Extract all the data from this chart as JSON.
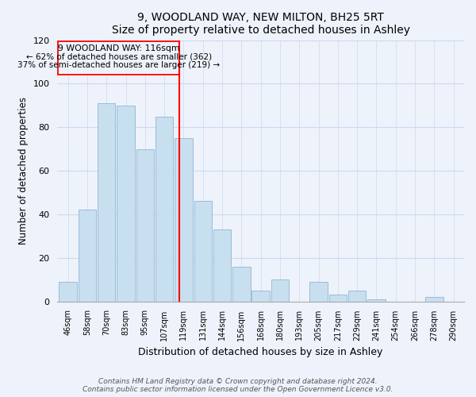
{
  "title": "9, WOODLAND WAY, NEW MILTON, BH25 5RT",
  "subtitle": "Size of property relative to detached houses in Ashley",
  "xlabel": "Distribution of detached houses by size in Ashley",
  "ylabel": "Number of detached properties",
  "bar_labels": [
    "46sqm",
    "58sqm",
    "70sqm",
    "83sqm",
    "95sqm",
    "107sqm",
    "119sqm",
    "131sqm",
    "144sqm",
    "156sqm",
    "168sqm",
    "180sqm",
    "193sqm",
    "205sqm",
    "217sqm",
    "229sqm",
    "241sqm",
    "254sqm",
    "266sqm",
    "278sqm",
    "290sqm"
  ],
  "bar_values": [
    9,
    42,
    91,
    90,
    70,
    85,
    75,
    46,
    33,
    16,
    5,
    10,
    0,
    9,
    3,
    5,
    1,
    0,
    0,
    2,
    0
  ],
  "bar_color": "#c8dff0",
  "bar_edge_color": "#99bcd8",
  "ref_line_x": 5.78,
  "annotation_label": "9 WOODLAND WAY: 116sqm",
  "annotation_line1": "← 62% of detached houses are smaller (362)",
  "annotation_line2": "37% of semi-detached houses are larger (219) →",
  "ylim": [
    0,
    120
  ],
  "yticks": [
    0,
    20,
    40,
    60,
    80,
    100,
    120
  ],
  "footer_line1": "Contains HM Land Registry data © Crown copyright and database right 2024.",
  "footer_line2": "Contains public sector information licensed under the Open Government Licence v3.0.",
  "background_color": "#eef2fb",
  "grid_color": "#d0d8f0"
}
